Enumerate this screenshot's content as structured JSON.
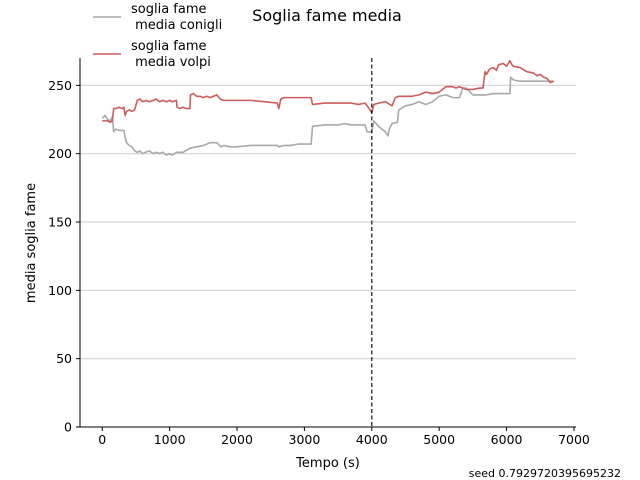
{
  "chart_data": {
    "type": "line",
    "title": "Soglia fame media",
    "xlabel": "Tempo (s)",
    "ylabel": "media soglia fame",
    "xlim": [
      -330,
      7030
    ],
    "ylim": [
      0,
      270
    ],
    "xticks": [
      0,
      1000,
      2000,
      3000,
      4000,
      5000,
      6000,
      7000
    ],
    "yticks": [
      0,
      50,
      100,
      150,
      200,
      250
    ],
    "grid": "horizontal",
    "legend_placement": "top-left",
    "vline": {
      "x": 4000,
      "style": "dashed",
      "color": "#000000"
    },
    "series": [
      {
        "name": "soglia fame\n media conigli",
        "color": "#a9a9a9",
        "points": [
          [
            0,
            226
          ],
          [
            40,
            228
          ],
          [
            80,
            225
          ],
          [
            120,
            224
          ],
          [
            150,
            227
          ],
          [
            170,
            216
          ],
          [
            200,
            218
          ],
          [
            250,
            217
          ],
          [
            320,
            217
          ],
          [
            340,
            212
          ],
          [
            360,
            208
          ],
          [
            400,
            206
          ],
          [
            440,
            205
          ],
          [
            480,
            202
          ],
          [
            520,
            201
          ],
          [
            560,
            202
          ],
          [
            600,
            200
          ],
          [
            640,
            201
          ],
          [
            700,
            202
          ],
          [
            760,
            200
          ],
          [
            800,
            201
          ],
          [
            850,
            200
          ],
          [
            900,
            201
          ],
          [
            950,
            199
          ],
          [
            1000,
            200
          ],
          [
            1040,
            199
          ],
          [
            1100,
            201
          ],
          [
            1150,
            201
          ],
          [
            1200,
            201
          ],
          [
            1300,
            204
          ],
          [
            1400,
            205
          ],
          [
            1500,
            206
          ],
          [
            1600,
            208
          ],
          [
            1700,
            208
          ],
          [
            1760,
            205
          ],
          [
            1800,
            206
          ],
          [
            1900,
            205
          ],
          [
            2000,
            205
          ],
          [
            2200,
            206
          ],
          [
            2400,
            206
          ],
          [
            2600,
            206
          ],
          [
            2620,
            205
          ],
          [
            2700,
            206
          ],
          [
            2800,
            206
          ],
          [
            2900,
            207
          ],
          [
            3000,
            207
          ],
          [
            3100,
            207
          ],
          [
            3120,
            220
          ],
          [
            3300,
            221
          ],
          [
            3500,
            221
          ],
          [
            3600,
            222
          ],
          [
            3700,
            221
          ],
          [
            3800,
            221
          ],
          [
            3900,
            221
          ],
          [
            3930,
            216
          ],
          [
            4000,
            216
          ],
          [
            4030,
            224
          ],
          [
            4100,
            220
          ],
          [
            4200,
            216
          ],
          [
            4240,
            213
          ],
          [
            4260,
            218
          ],
          [
            4300,
            222
          ],
          [
            4380,
            223
          ],
          [
            4400,
            232
          ],
          [
            4500,
            235
          ],
          [
            4600,
            236
          ],
          [
            4700,
            238
          ],
          [
            4800,
            236
          ],
          [
            4900,
            238
          ],
          [
            5000,
            242
          ],
          [
            5100,
            243
          ],
          [
            5200,
            241
          ],
          [
            5300,
            241
          ],
          [
            5350,
            248
          ],
          [
            5400,
            248
          ],
          [
            5500,
            243
          ],
          [
            5600,
            243
          ],
          [
            5700,
            243
          ],
          [
            5800,
            244
          ],
          [
            5900,
            244
          ],
          [
            6000,
            244
          ],
          [
            6050,
            244
          ],
          [
            6060,
            256
          ],
          [
            6100,
            254
          ],
          [
            6200,
            253
          ],
          [
            6400,
            253
          ],
          [
            6600,
            253
          ],
          [
            6700,
            253
          ]
        ]
      },
      {
        "name": "soglia fame\n media volpi",
        "color": "#cd5c5c",
        "points": [
          [
            0,
            224
          ],
          [
            40,
            224
          ],
          [
            80,
            224
          ],
          [
            120,
            223
          ],
          [
            150,
            224
          ],
          [
            170,
            233
          ],
          [
            200,
            233
          ],
          [
            250,
            234
          ],
          [
            300,
            233
          ],
          [
            320,
            234
          ],
          [
            340,
            228
          ],
          [
            360,
            231
          ],
          [
            400,
            232
          ],
          [
            440,
            231
          ],
          [
            480,
            232
          ],
          [
            520,
            239
          ],
          [
            560,
            240
          ],
          [
            600,
            238
          ],
          [
            650,
            239
          ],
          [
            700,
            238
          ],
          [
            760,
            239
          ],
          [
            800,
            240
          ],
          [
            850,
            238
          ],
          [
            900,
            239
          ],
          [
            950,
            238
          ],
          [
            1000,
            239
          ],
          [
            1040,
            238
          ],
          [
            1100,
            239
          ],
          [
            1110,
            234
          ],
          [
            1150,
            233
          ],
          [
            1200,
            234
          ],
          [
            1250,
            233
          ],
          [
            1300,
            233
          ],
          [
            1310,
            243
          ],
          [
            1350,
            244
          ],
          [
            1400,
            242
          ],
          [
            1450,
            242
          ],
          [
            1500,
            241
          ],
          [
            1550,
            242
          ],
          [
            1600,
            241
          ],
          [
            1650,
            242
          ],
          [
            1700,
            243
          ],
          [
            1750,
            240
          ],
          [
            1800,
            239
          ],
          [
            1900,
            239
          ],
          [
            2000,
            239
          ],
          [
            2200,
            239
          ],
          [
            2400,
            238
          ],
          [
            2600,
            237
          ],
          [
            2620,
            233
          ],
          [
            2650,
            240
          ],
          [
            2700,
            241
          ],
          [
            2800,
            241
          ],
          [
            2900,
            241
          ],
          [
            3000,
            241
          ],
          [
            3100,
            241
          ],
          [
            3120,
            236
          ],
          [
            3300,
            237
          ],
          [
            3500,
            237
          ],
          [
            3600,
            237
          ],
          [
            3700,
            237
          ],
          [
            3800,
            236
          ],
          [
            3900,
            237
          ],
          [
            3930,
            235
          ],
          [
            3960,
            233
          ],
          [
            4000,
            230
          ],
          [
            4030,
            236
          ],
          [
            4100,
            237
          ],
          [
            4200,
            238
          ],
          [
            4300,
            235
          ],
          [
            4350,
            241
          ],
          [
            4400,
            242
          ],
          [
            4500,
            242
          ],
          [
            4600,
            242
          ],
          [
            4700,
            243
          ],
          [
            4800,
            245
          ],
          [
            4900,
            244
          ],
          [
            5000,
            245
          ],
          [
            5050,
            247
          ],
          [
            5100,
            249
          ],
          [
            5200,
            249
          ],
          [
            5250,
            248
          ],
          [
            5300,
            249
          ],
          [
            5400,
            247
          ],
          [
            5500,
            247
          ],
          [
            5600,
            248
          ],
          [
            5650,
            248
          ],
          [
            5680,
            260
          ],
          [
            5700,
            258
          ],
          [
            5750,
            262
          ],
          [
            5800,
            263
          ],
          [
            5850,
            261
          ],
          [
            5880,
            265
          ],
          [
            5950,
            266
          ],
          [
            6000,
            264
          ],
          [
            6050,
            268
          ],
          [
            6080,
            265
          ],
          [
            6100,
            264
          ],
          [
            6200,
            263
          ],
          [
            6300,
            260
          ],
          [
            6400,
            259
          ],
          [
            6450,
            257
          ],
          [
            6500,
            258
          ],
          [
            6550,
            256
          ],
          [
            6600,
            255
          ],
          [
            6650,
            252
          ],
          [
            6700,
            253
          ]
        ]
      }
    ]
  },
  "footer": {
    "seed": "seed 0.7929720395695232"
  }
}
